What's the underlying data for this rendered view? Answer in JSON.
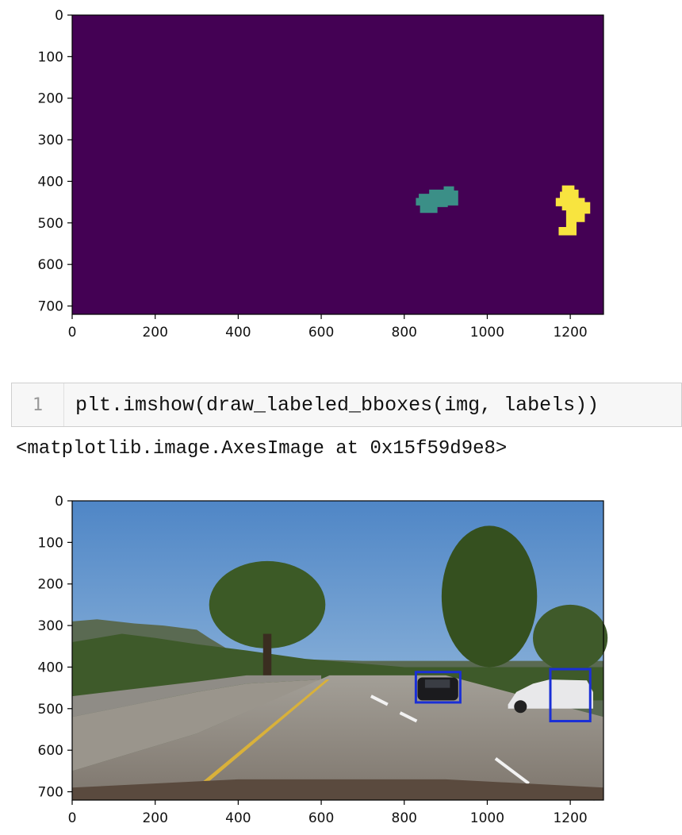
{
  "cell": {
    "prompt_number": "1",
    "code": "plt.imshow(draw_labeled_bboxes(img, labels))"
  },
  "output": {
    "repr": "<matplotlib.image.AxesImage at 0x15f59d9e8>"
  },
  "chart_data": [
    {
      "type": "heatmap",
      "title": "",
      "xlabel": "",
      "ylabel": "",
      "xlim": [
        0,
        1280
      ],
      "ylim": [
        720,
        0
      ],
      "x_ticks": [
        "0",
        "200",
        "400",
        "600",
        "800",
        "1000",
        "1200"
      ],
      "y_ticks": [
        "0",
        "100",
        "200",
        "300",
        "400",
        "500",
        "600",
        "700"
      ],
      "colormap": "viridis",
      "background_color": "#440154",
      "labels": [
        {
          "label": 1,
          "color": "#3b8f87",
          "x_range": [
            830,
            935
          ],
          "y_range": [
            410,
            480
          ]
        },
        {
          "label": 2,
          "color": "#f8e43f",
          "x_range": [
            1150,
            1250
          ],
          "y_range": [
            410,
            535
          ]
        }
      ]
    },
    {
      "type": "image",
      "title": "",
      "xlabel": "",
      "ylabel": "",
      "xlim": [
        0,
        1280
      ],
      "ylim": [
        720,
        0
      ],
      "x_ticks": [
        "0",
        "200",
        "400",
        "600",
        "800",
        "1000",
        "1200"
      ],
      "y_ticks": [
        "0",
        "100",
        "200",
        "300",
        "400",
        "500",
        "600",
        "700"
      ],
      "bbox_color": "#1a2fd6",
      "bboxes": [
        {
          "x": [
            828,
            935
          ],
          "y": [
            412,
            485
          ]
        },
        {
          "x": [
            1152,
            1248
          ],
          "y": [
            405,
            530
          ]
        }
      ]
    }
  ]
}
